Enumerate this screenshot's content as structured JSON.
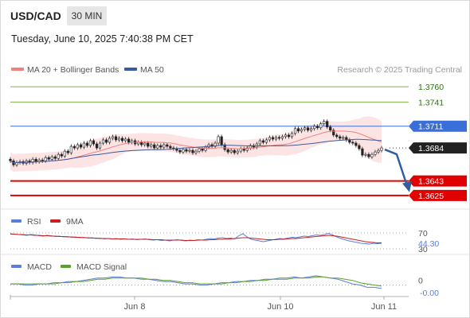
{
  "header": {
    "pair": "USD/CAD",
    "timeframe": "30 MIN",
    "datetime": "Tuesday, June 10, 2025 7:40:38 PM CET",
    "credit": "Research © 2025 Trading Central"
  },
  "legend": {
    "ma20": "MA 20 + Bollinger Bands",
    "ma50": "MA 50",
    "rsi": "RSI",
    "rsi_ma": "9MA",
    "macd": "MACD",
    "macd_signal": "MACD Signal"
  },
  "colors": {
    "ma20": "#f08080",
    "ma50": "#3a5a9b",
    "band_fill": "#fde4e4",
    "up_candle": "#ffffff",
    "down_candle": "#222222",
    "green_level": "#7ab648",
    "blue_level": "#3b6fd8",
    "red_level": "#e00000",
    "arrow": "#2f5fa0",
    "rsi": "#5b7fd6",
    "rsi_ma": "#cc1f1f",
    "macd": "#5b7fd6",
    "macd_signal": "#5aa02c"
  },
  "chart_data": [
    {
      "type": "candlestick",
      "title": "USD/CAD 30 MIN",
      "ylim": [
        1.3612,
        1.377
      ],
      "levels": [
        {
          "value": 1.376,
          "label": "1.3760",
          "kind": "resistance",
          "color": "green"
        },
        {
          "value": 1.3741,
          "label": "1.3741",
          "kind": "resistance",
          "color": "green"
        },
        {
          "value": 1.3711,
          "label": "1.3711",
          "kind": "pivot",
          "color": "blue"
        },
        {
          "value": 1.3684,
          "label": "1.3684",
          "kind": "last_price",
          "color": "black"
        },
        {
          "value": 1.3643,
          "label": "1.3643",
          "kind": "support",
          "color": "red"
        },
        {
          "value": 1.3625,
          "label": "1.3625",
          "kind": "support",
          "color": "red"
        }
      ],
      "close": [
        1.3668,
        1.3663,
        1.3666,
        1.3667,
        1.3665,
        1.3668,
        1.3666,
        1.367,
        1.3667,
        1.3669,
        1.3668,
        1.3672,
        1.367,
        1.3673,
        1.3671,
        1.3676,
        1.3674,
        1.368,
        1.3678,
        1.3686,
        1.3684,
        1.3688,
        1.3685,
        1.369,
        1.3687,
        1.3693,
        1.3689,
        1.3684,
        1.369,
        1.3694,
        1.3691,
        1.3696,
        1.3698,
        1.3694,
        1.3696,
        1.3693,
        1.3695,
        1.3691,
        1.3693,
        1.3689,
        1.3691,
        1.3688,
        1.369,
        1.3686,
        1.3688,
        1.3684,
        1.3687,
        1.3685,
        1.3688,
        1.3686,
        1.3684,
        1.3683,
        1.3681,
        1.3679,
        1.3682,
        1.368,
        1.3681,
        1.3678,
        1.368,
        1.3683,
        1.3681,
        1.3685,
        1.3688,
        1.3686,
        1.369,
        1.3698,
        1.3688,
        1.3682,
        1.3679,
        1.3681,
        1.3678,
        1.368,
        1.3683,
        1.3681,
        1.3684,
        1.3687,
        1.3685,
        1.3689,
        1.3693,
        1.3691,
        1.3694,
        1.3697,
        1.3695,
        1.3697,
        1.3696,
        1.3698,
        1.37,
        1.3698,
        1.3702,
        1.3708,
        1.3705,
        1.3707,
        1.3709,
        1.3706,
        1.3708,
        1.3711,
        1.3709,
        1.3714,
        1.3717,
        1.371,
        1.3706,
        1.37,
        1.3698,
        1.3696,
        1.3697,
        1.3694,
        1.3691,
        1.369,
        1.3687,
        1.3683,
        1.3675,
        1.3676,
        1.3673,
        1.3676,
        1.3679,
        1.3681,
        1.3684
      ],
      "x_ticks": [
        "Jun 8",
        "Jun 10",
        "Jun 11"
      ]
    },
    {
      "type": "line",
      "title": "RSI",
      "ylim": [
        20,
        80
      ],
      "levels": [
        {
          "value": 70,
          "label": "70"
        },
        {
          "value": 30,
          "label": "30"
        }
      ],
      "current_label": "44.30",
      "series": [
        {
          "name": "RSI",
          "values": [
            68,
            67,
            66,
            65,
            64,
            66,
            65,
            63,
            62,
            64,
            63,
            61,
            62,
            60,
            61,
            59,
            60,
            58,
            59,
            57,
            58,
            56,
            57,
            55,
            56,
            55,
            56,
            54,
            55,
            54,
            55,
            53,
            54,
            55,
            53,
            52,
            53,
            51,
            52,
            50,
            52,
            53,
            51,
            50,
            52,
            51,
            53,
            52,
            54,
            56,
            55,
            57,
            58,
            56,
            57,
            55,
            63,
            68,
            60,
            54,
            52,
            50,
            48,
            50,
            52,
            54,
            56,
            55,
            57,
            59,
            58,
            60,
            62,
            61,
            63,
            65,
            64,
            66,
            69,
            65,
            60,
            56,
            53,
            50,
            48,
            46,
            44,
            43,
            42,
            44,
            43,
            44.3
          ]
        },
        {
          "name": "9MA",
          "values": [
            67,
            67,
            66,
            66,
            65,
            65,
            64,
            64,
            63,
            63,
            62,
            62,
            61,
            61,
            60,
            60,
            59,
            59,
            58,
            58,
            57,
            57,
            56,
            56,
            56,
            55,
            55,
            55,
            55,
            54,
            54,
            54,
            54,
            54,
            54,
            53,
            53,
            53,
            52,
            52,
            52,
            52,
            52,
            51,
            51,
            51,
            52,
            52,
            52,
            53,
            53,
            54,
            54,
            55,
            55,
            56,
            57,
            58,
            58,
            57,
            56,
            55,
            54,
            53,
            53,
            53,
            54,
            54,
            55,
            56,
            56,
            57,
            58,
            59,
            60,
            61,
            62,
            63,
            64,
            63,
            62,
            60,
            58,
            56,
            54,
            52,
            50,
            48,
            47,
            46,
            45,
            45
          ]
        }
      ]
    },
    {
      "type": "line",
      "title": "MACD",
      "ylim": [
        -0.001,
        0.001
      ],
      "levels": [
        {
          "value": 0,
          "label": "0"
        }
      ],
      "current_label": "-0.00",
      "series": [
        {
          "name": "MACD",
          "values": [
            0.0001,
            0.0001,
            0.0,
            0.0,
            0.0001,
            0.0001,
            0.0002,
            0.0002,
            0.0003,
            0.0003,
            0.0004,
            0.0005,
            0.0006,
            0.0006,
            0.0007,
            0.0007,
            0.0006,
            0.0006,
            0.0005,
            0.0005,
            0.0004,
            0.0003,
            0.0003,
            0.0002,
            0.0001,
            0.0001,
            0.0,
            0.0,
            0.0001,
            0.0002,
            0.0002,
            0.0003,
            0.0003,
            0.0004,
            0.0004,
            0.0005,
            0.0005,
            0.0006,
            0.0006,
            0.0007,
            0.0006,
            0.0007,
            0.0008,
            0.0007,
            0.0006,
            0.0005,
            0.0003,
            0.0001,
            0.0,
            -0.0002,
            -0.0002,
            -0.0003
          ]
        },
        {
          "name": "MACD Signal",
          "values": [
            0.0001,
            0.0001,
            0.0001,
            0.0001,
            0.0001,
            0.0001,
            0.0001,
            0.0002,
            0.0002,
            0.0003,
            0.0003,
            0.0004,
            0.0005,
            0.0005,
            0.0006,
            0.0006,
            0.0006,
            0.0006,
            0.0006,
            0.0005,
            0.0005,
            0.0004,
            0.0004,
            0.0003,
            0.0002,
            0.0002,
            0.0001,
            0.0001,
            0.0001,
            0.0001,
            0.0002,
            0.0002,
            0.0003,
            0.0003,
            0.0004,
            0.0004,
            0.0005,
            0.0005,
            0.0005,
            0.0006,
            0.0006,
            0.0006,
            0.0007,
            0.0007,
            0.0006,
            0.0006,
            0.0005,
            0.0004,
            0.0002,
            0.0001,
            0.0,
            -0.0001
          ]
        }
      ]
    }
  ]
}
